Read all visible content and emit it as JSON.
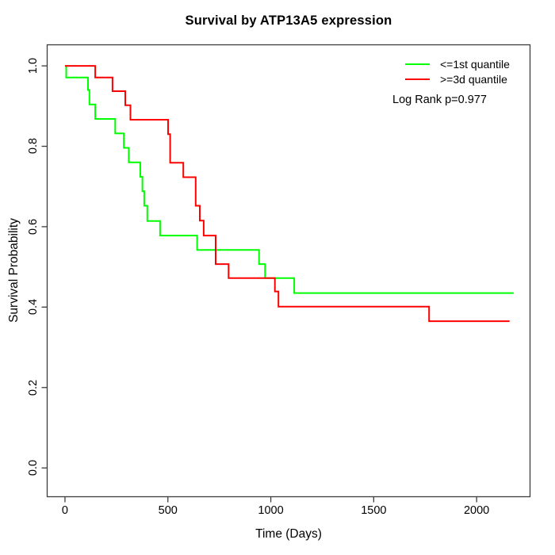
{
  "chart_data": {
    "type": "line",
    "subtype": "kaplan-meier-step",
    "title": "Survival by ATP13A5 expression",
    "xlabel": "Time (Days)",
    "ylabel": "Survival Probability",
    "xlim": [
      0,
      2200
    ],
    "ylim": [
      0.0,
      1.0
    ],
    "grid": false,
    "legend_position": "top-right-inside",
    "annotation": "Log Rank p=0.977",
    "x_ticks": [
      0,
      500,
      1000,
      1500,
      2000
    ],
    "x_tick_labels": [
      "0",
      "500",
      "1000",
      "1500",
      "2000"
    ],
    "y_ticks": [
      0.0,
      0.2,
      0.4,
      0.6,
      0.8,
      1.0
    ],
    "y_tick_labels": [
      "0.0",
      "0.2",
      "0.4",
      "0.6",
      "0.8",
      "1.0"
    ],
    "series": [
      {
        "name": "<=1st quantile",
        "color": "#00ff00",
        "points": [
          [
            0,
            1.0
          ],
          [
            6,
            0.971
          ],
          [
            112,
            0.94
          ],
          [
            119,
            0.904
          ],
          [
            147,
            0.868
          ],
          [
            244,
            0.832
          ],
          [
            286,
            0.796
          ],
          [
            310,
            0.76
          ],
          [
            366,
            0.724
          ],
          [
            376,
            0.688
          ],
          [
            385,
            0.652
          ],
          [
            400,
            0.614
          ],
          [
            462,
            0.578
          ],
          [
            642,
            0.542
          ],
          [
            943,
            0.507
          ],
          [
            972,
            0.472
          ],
          [
            1114,
            0.435
          ],
          [
            2180,
            0.435
          ]
        ]
      },
      {
        "name": ">=3d quantile",
        "color": "#ff0000",
        "points": [
          [
            0,
            1.0
          ],
          [
            147,
            0.971
          ],
          [
            231,
            0.937
          ],
          [
            293,
            0.902
          ],
          [
            318,
            0.866
          ],
          [
            501,
            0.83
          ],
          [
            511,
            0.759
          ],
          [
            575,
            0.723
          ],
          [
            635,
            0.652
          ],
          [
            655,
            0.615
          ],
          [
            674,
            0.578
          ],
          [
            732,
            0.507
          ],
          [
            795,
            0.472
          ],
          [
            1020,
            0.439
          ],
          [
            1037,
            0.401
          ],
          [
            1769,
            0.365
          ],
          [
            2160,
            0.365
          ]
        ]
      }
    ]
  },
  "colors": {
    "axis": "#3d3d3d",
    "text": "#000000",
    "background": "#ffffff"
  }
}
